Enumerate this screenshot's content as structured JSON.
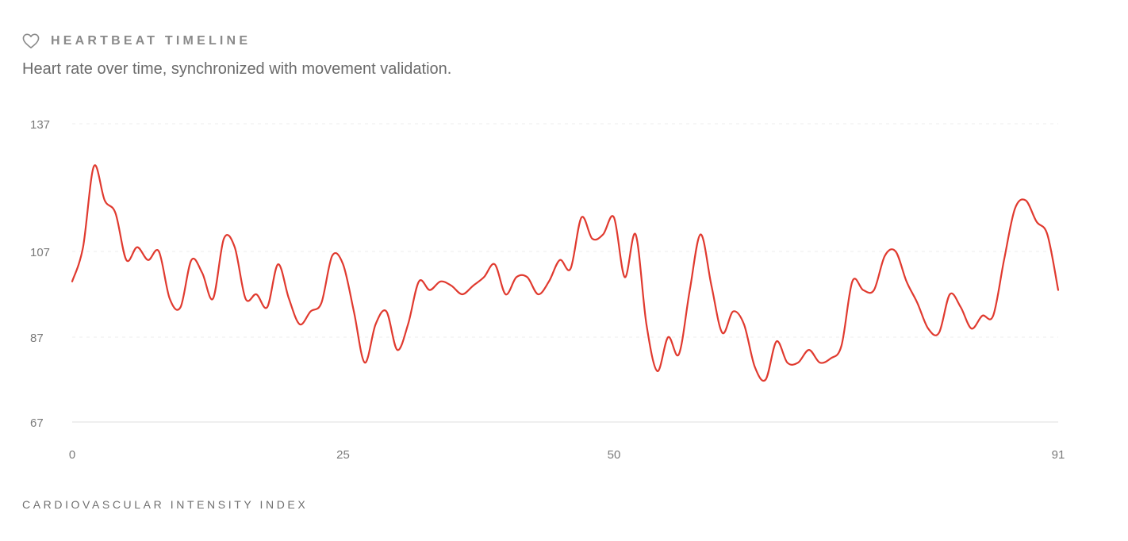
{
  "header": {
    "icon": "heart-icon",
    "title": "HEARTBEAT TIMELINE",
    "subtitle": "Heart rate over time, synchronized with movement validation."
  },
  "footer": {
    "label": "CARDIOVASCULAR INTENSITY INDEX"
  },
  "colors": {
    "line": "#e03a2f",
    "grid": "#eeeeee",
    "axis": "#e5e5e5",
    "text": "#7a7a7a"
  },
  "chart_data": {
    "type": "line",
    "title": "",
    "xlabel": "",
    "ylabel": "",
    "xlim": [
      0,
      91
    ],
    "ylim": [
      67,
      137
    ],
    "x_ticks": [
      "0",
      "25",
      "50",
      "91"
    ],
    "x_tick_values": [
      0,
      25,
      50,
      91
    ],
    "y_ticks": [
      "137",
      "107",
      "87",
      "67"
    ],
    "y_tick_values": [
      137,
      107,
      87,
      67
    ],
    "grid": true,
    "series": [
      {
        "values": [
          100,
          108,
          127,
          119,
          116,
          105,
          108,
          105,
          107,
          96,
          94,
          105,
          102,
          96,
          110,
          108,
          96,
          97,
          94,
          104,
          96,
          90,
          93,
          95,
          106,
          104,
          93,
          81,
          90,
          93,
          84,
          90,
          100,
          98,
          100,
          99,
          97,
          99,
          101,
          104,
          97,
          101,
          101,
          97,
          100,
          105,
          103,
          115,
          110,
          111,
          115,
          101,
          111,
          90,
          79,
          87,
          83,
          98,
          111,
          99,
          88,
          93,
          90,
          80,
          77,
          86,
          81,
          81,
          84,
          81,
          82,
          85,
          100,
          98,
          98,
          106,
          107,
          100,
          95,
          89,
          88,
          97,
          94,
          89,
          92,
          92,
          105,
          117,
          119,
          114,
          111,
          98
        ]
      }
    ]
  }
}
